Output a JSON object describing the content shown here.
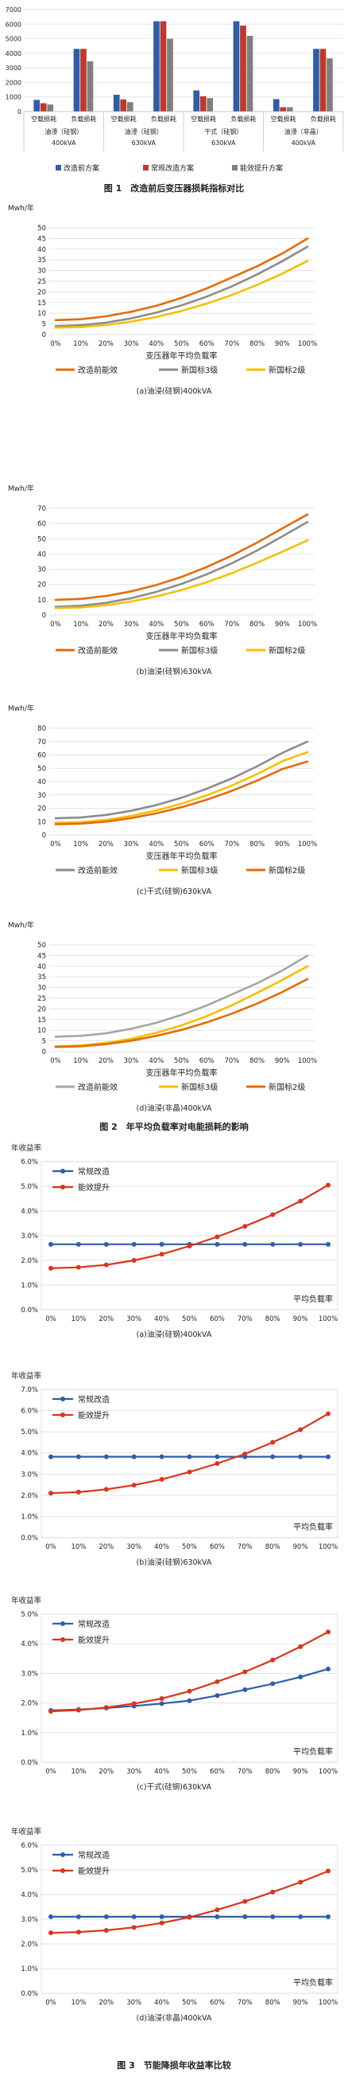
{
  "fig1": {
    "caption": "图 1　改造前后变压器损耗指标对比",
    "legend": [
      "改造前方案",
      "常规改造方案",
      "能效提升方案"
    ],
    "colors": [
      "#2E5EAA",
      "#C0392B",
      "#7F7F7F"
    ],
    "groups": [
      {
        "type": "油浸（硅钢）",
        "cap": "400kVA"
      },
      {
        "type": "油浸（硅钢）",
        "cap": "630kVA"
      },
      {
        "type": "干式（硅钢）",
        "cap": "630kVA"
      },
      {
        "type": "油浸（非晶）",
        "cap": "400kVA"
      }
    ],
    "sub_labels": [
      "空载损耗",
      "负载损耗"
    ],
    "chart_data": {
      "type": "bar",
      "ylim": [
        0,
        7000
      ],
      "yticks": [
        0,
        1000,
        2000,
        3000,
        4000,
        5000,
        6000,
        7000
      ],
      "categories": [
        "油浸（硅钢）400kVA 空载损耗",
        "油浸（硅钢）400kVA 负载损耗",
        "油浸（硅钢）630kVA 空载损耗",
        "油浸（硅钢）630kVA 负载损耗",
        "干式（硅钢）630kVA 空载损耗",
        "干式（硅钢）630kVA 负载损耗",
        "油浸（非晶）400kVA 空载损耗",
        "油浸（非晶）400kVA 负载损耗"
      ],
      "series": [
        {
          "name": "改造前方案",
          "values": [
            800,
            4300,
            1150,
            6200,
            1450,
            6200,
            850,
            4300
          ]
        },
        {
          "name": "常规改造方案",
          "values": [
            570,
            4300,
            830,
            6200,
            1050,
            5900,
            300,
            4300
          ]
        },
        {
          "name": "能效提升方案",
          "values": [
            480,
            3450,
            650,
            5000,
            920,
            5200,
            300,
            3650
          ]
        }
      ]
    }
  },
  "fig2": {
    "caption": "图 2　年平均负载率对电能损耗的影响",
    "ylabel": "Mwh/年",
    "xticks": [
      "0%",
      "10%",
      "20%",
      "30%",
      "40%",
      "50%",
      "60%",
      "70%",
      "80%",
      "90%",
      "100%"
    ],
    "charts": [
      {
        "ylim": [
          0,
          50
        ],
        "yticks": [
          0,
          5,
          10,
          15,
          20,
          25,
          30,
          35,
          40,
          45,
          50
        ],
        "xlabel": "变压器年平均负载率",
        "sub": "(a)油浸(硅钢)400kVA",
        "legend": [
          "改造前能效",
          "新国标3级",
          "新国标2级"
        ],
        "chart_data": {
          "type": "line",
          "x": [
            0,
            10,
            20,
            30,
            40,
            50,
            60,
            70,
            80,
            90,
            100
          ],
          "series": [
            {
              "name": "改造前能效",
              "color": "#E46C0A",
              "values": [
                6.8,
                7.2,
                8.6,
                10.7,
                13.5,
                17.2,
                21.6,
                26.8,
                32.0,
                38.0,
                45.0
              ]
            },
            {
              "name": "新国标3级",
              "color": "#8C8C8C",
              "values": [
                4.0,
                4.4,
                5.6,
                7.6,
                10.3,
                13.7,
                17.8,
                22.6,
                28.2,
                34.4,
                41.2
              ]
            },
            {
              "name": "新国标2级",
              "color": "#F5C000",
              "values": [
                3.3,
                3.6,
                4.5,
                6.1,
                8.3,
                11.1,
                14.5,
                18.6,
                23.3,
                28.6,
                34.5
              ]
            }
          ]
        }
      },
      {
        "ylim": [
          0,
          70
        ],
        "yticks": [
          0,
          10,
          20,
          30,
          40,
          50,
          60,
          70
        ],
        "xlabel": "变压器年平均负载率",
        "sub": "(b)油浸(硅钢)630kVA",
        "legend": [
          "改造前能效",
          "新国标3级",
          "新国标2级"
        ],
        "chart_data": {
          "type": "line",
          "x": [
            0,
            10,
            20,
            30,
            40,
            50,
            60,
            70,
            80,
            90,
            100
          ],
          "series": [
            {
              "name": "改造前能效",
              "color": "#E46C0A",
              "values": [
                10.0,
                10.6,
                12.5,
                15.5,
                19.7,
                25.0,
                31.5,
                39.0,
                47.5,
                56.8,
                66.0
              ]
            },
            {
              "name": "新国标3级",
              "color": "#8C8C8C",
              "values": [
                5.5,
                6.1,
                8.0,
                11.0,
                15.2,
                20.4,
                26.7,
                34.0,
                42.3,
                51.6,
                61.0
              ]
            },
            {
              "name": "新国标2级",
              "color": "#F5C000",
              "values": [
                4.6,
                5.0,
                6.5,
                8.9,
                12.2,
                16.4,
                21.5,
                27.5,
                34.3,
                41.5,
                49.0
              ]
            }
          ]
        }
      },
      {
        "ylim": [
          0,
          80
        ],
        "yticks": [
          0,
          10,
          20,
          30,
          40,
          50,
          60,
          70,
          80
        ],
        "xlabel": "变压器年平均负载率",
        "sub": "(c)干式(硅钢)630kVA",
        "legend": [
          "改造前能效",
          "新国标3级",
          "新国标2级"
        ],
        "chart_data": {
          "type": "line",
          "x": [
            0,
            10,
            20,
            30,
            40,
            50,
            60,
            70,
            80,
            90,
            100
          ],
          "series": [
            {
              "name": "改造前能效",
              "color": "#8C8C8C",
              "values": [
                12.5,
                13.1,
                15.0,
                18.1,
                22.4,
                27.9,
                34.6,
                42.4,
                51.4,
                61.5,
                70.0
              ]
            },
            {
              "name": "新国标3级",
              "color": "#F5C000",
              "values": [
                9.0,
                9.6,
                11.3,
                14.2,
                18.3,
                23.4,
                29.7,
                37.1,
                45.6,
                55.2,
                62.0
              ]
            },
            {
              "name": "新国标2级",
              "color": "#E46C0A",
              "values": [
                8.0,
                8.5,
                10.0,
                12.6,
                16.2,
                20.8,
                26.4,
                33.1,
                40.7,
                49.4,
                55.0
              ]
            }
          ]
        }
      },
      {
        "ylim": [
          0,
          50
        ],
        "yticks": [
          0,
          5,
          10,
          15,
          20,
          25,
          30,
          35,
          40,
          45,
          50
        ],
        "xlabel": "变压器年平均负载率",
        "sub": "(d)油浸(非晶)400kVA",
        "legend": [
          "改造前能效",
          "新国标3级",
          "新国标2级"
        ],
        "chart_data": {
          "type": "line",
          "x": [
            0,
            10,
            20,
            30,
            40,
            50,
            60,
            70,
            80,
            90,
            100
          ],
          "series": [
            {
              "name": "改造前能效",
              "color": "#A6A6A6",
              "values": [
                7.0,
                7.4,
                8.6,
                10.7,
                13.5,
                17.2,
                21.6,
                26.8,
                32.0,
                38.0,
                45.0
              ]
            },
            {
              "name": "新国标3级",
              "color": "#F5C000",
              "values": [
                2.5,
                2.9,
                4.1,
                6.0,
                8.8,
                12.3,
                16.6,
                21.7,
                27.5,
                33.5,
                40.0
              ]
            },
            {
              "name": "新国标2级",
              "color": "#E46C0A",
              "values": [
                2.2,
                2.5,
                3.5,
                5.1,
                7.4,
                10.2,
                13.7,
                17.8,
                22.5,
                27.9,
                34.0
              ]
            }
          ]
        }
      }
    ]
  },
  "fig3": {
    "caption": "图 3　节能降损年收益率比较",
    "ylabel": "年收益率",
    "xticks": [
      "0%",
      "10%",
      "20%",
      "30%",
      "40%",
      "50%",
      "60%",
      "70%",
      "80%",
      "90%",
      "100%"
    ],
    "xlabel": "平均负载率",
    "legend": [
      "常规改造",
      "能效提升"
    ],
    "colors": [
      "#2E5EAA",
      "#D9361C"
    ],
    "charts": [
      {
        "ylim": [
          0,
          6
        ],
        "yticks": [
          "0.0%",
          "1.0%",
          "2.0%",
          "3.0%",
          "4.0%",
          "5.0%",
          "6.0%"
        ],
        "sub": "(a)油浸(硅钢)400kVA",
        "chart_data": {
          "type": "line",
          "x": [
            0,
            10,
            20,
            30,
            40,
            50,
            60,
            70,
            80,
            90,
            100
          ],
          "series": [
            {
              "name": "常规改造",
              "values": [
                2.65,
                2.65,
                2.65,
                2.65,
                2.65,
                2.65,
                2.65,
                2.65,
                2.65,
                2.65,
                2.65
              ]
            },
            {
              "name": "能效提升",
              "values": [
                1.68,
                1.72,
                1.82,
                2.0,
                2.25,
                2.58,
                2.95,
                3.38,
                3.85,
                4.4,
                5.05
              ]
            }
          ]
        }
      },
      {
        "ylim": [
          0,
          7
        ],
        "yticks": [
          "0.0%",
          "1.0%",
          "2.0%",
          "3.0%",
          "4.0%",
          "5.0%",
          "6.0%",
          "7.0%"
        ],
        "sub": "(b)油浸(硅钢)630kVA",
        "chart_data": {
          "type": "line",
          "x": [
            0,
            10,
            20,
            30,
            40,
            50,
            60,
            70,
            80,
            90,
            100
          ],
          "series": [
            {
              "name": "常规改造",
              "values": [
                3.82,
                3.82,
                3.82,
                3.82,
                3.82,
                3.82,
                3.82,
                3.82,
                3.82,
                3.82,
                3.82
              ]
            },
            {
              "name": "能效提升",
              "values": [
                2.1,
                2.15,
                2.28,
                2.48,
                2.75,
                3.1,
                3.5,
                3.95,
                4.5,
                5.1,
                5.85
              ]
            }
          ]
        }
      },
      {
        "ylim": [
          0,
          5
        ],
        "yticks": [
          "0.0%",
          "1.0%",
          "2.0%",
          "3.0%",
          "4.0%",
          "5.0%"
        ],
        "sub": "(c)干式(硅钢)630kVA",
        "chart_data": {
          "type": "line",
          "x": [
            0,
            10,
            20,
            30,
            40,
            50,
            60,
            70,
            80,
            90,
            100
          ],
          "series": [
            {
              "name": "常规改造",
              "values": [
                1.75,
                1.78,
                1.83,
                1.9,
                1.98,
                2.08,
                2.25,
                2.45,
                2.65,
                2.88,
                3.15
              ]
            },
            {
              "name": "能效提升",
              "values": [
                1.72,
                1.76,
                1.85,
                1.98,
                2.15,
                2.4,
                2.72,
                3.05,
                3.45,
                3.9,
                4.4
              ]
            }
          ]
        }
      },
      {
        "ylim": [
          0,
          6
        ],
        "yticks": [
          "0.0%",
          "1.0%",
          "2.0%",
          "3.0%",
          "4.0%",
          "5.0%",
          "6.0%"
        ],
        "sub": "(d)油浸(非晶)400kVA",
        "chart_data": {
          "type": "line",
          "x": [
            0,
            10,
            20,
            30,
            40,
            50,
            60,
            70,
            80,
            90,
            100
          ],
          "series": [
            {
              "name": "常规改造",
              "values": [
                3.1,
                3.1,
                3.1,
                3.1,
                3.1,
                3.1,
                3.1,
                3.1,
                3.1,
                3.1,
                3.1
              ]
            },
            {
              "name": "能效提升",
              "values": [
                2.45,
                2.48,
                2.55,
                2.67,
                2.85,
                3.08,
                3.38,
                3.72,
                4.1,
                4.5,
                4.95
              ]
            }
          ]
        }
      }
    ]
  }
}
